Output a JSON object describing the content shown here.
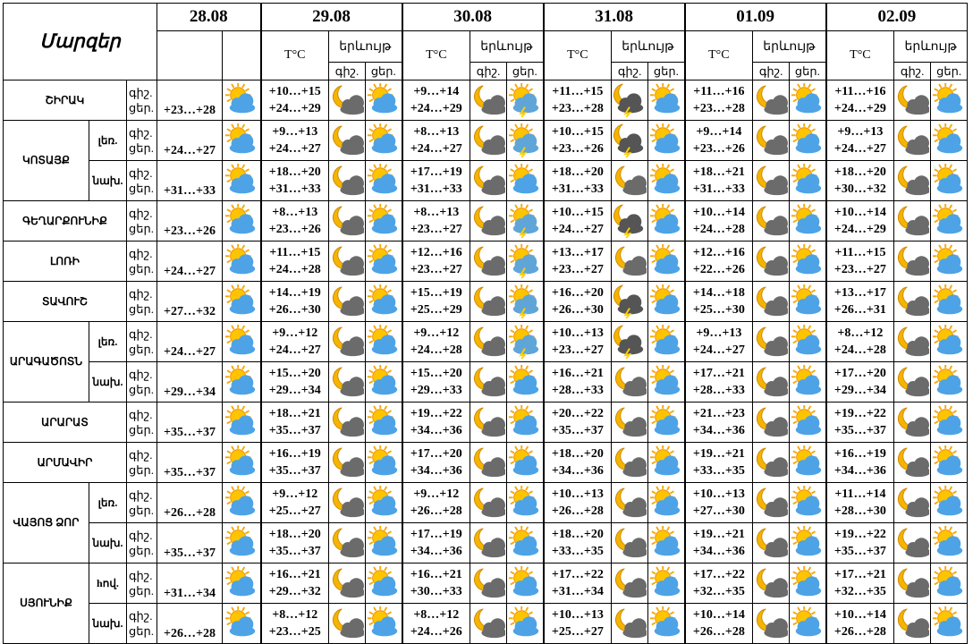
{
  "header": {
    "regions": "Մարզեր",
    "dates": [
      "28.08",
      "29.08",
      "30.08",
      "31.08",
      "01.09",
      "02.09"
    ],
    "temp": "T°C",
    "phenomenon": "երևույթ",
    "night": "գիշ.",
    "day": "ցեր."
  },
  "regions": [
    {
      "name": "ՇԻՐԱԿ",
      "zones": [
        {
          "today": "+23…+28",
          "forecast": [
            {
              "night": "+10…+15",
              "day": "+24…+29"
            },
            {
              "night": "+9…+14",
              "day": "+24…+29"
            },
            {
              "night": "+11…+15",
              "day": "+23…+28"
            },
            {
              "night": "+11…+16",
              "day": "+23…+28"
            },
            {
              "night": "+11…+16",
              "day": "+24…+29"
            }
          ]
        }
      ]
    },
    {
      "name": "ԿՈՏԱՅՔ",
      "zones": [
        {
          "name": "լեռ.",
          "today": "+24…+27",
          "forecast": [
            {
              "night": "+9…+13",
              "day": "+24…+27"
            },
            {
              "night": "+8…+13",
              "day": "+24…+27"
            },
            {
              "night": "+10…+15",
              "day": "+23…+26"
            },
            {
              "night": "+9…+14",
              "day": "+23…+26"
            },
            {
              "night": "+9…+13",
              "day": "+24…+27"
            }
          ]
        },
        {
          "name": "նախ.",
          "today": "+31…+33",
          "forecast": [
            {
              "night": "+18…+20",
              "day": "+31…+33"
            },
            {
              "night": "+17…+19",
              "day": "+31…+33"
            },
            {
              "night": "+18…+20",
              "day": "+31…+33"
            },
            {
              "night": "+18…+21",
              "day": "+31…+33"
            },
            {
              "night": "+18…+20",
              "day": "+30…+32"
            }
          ]
        }
      ]
    },
    {
      "name": "ԳԵՂԱՐՔՈՒՆԻՔ",
      "zones": [
        {
          "today": "+23…+26",
          "forecast": [
            {
              "night": "+8…+13",
              "day": "+23…+26"
            },
            {
              "night": "+8…+13",
              "day": "+23…+27"
            },
            {
              "night": "+10…+15",
              "day": "+24…+27"
            },
            {
              "night": "+10…+14",
              "day": "+24…+28"
            },
            {
              "night": "+10…+14",
              "day": "+24…+29"
            }
          ]
        }
      ]
    },
    {
      "name": "ԼՈՌԻ",
      "zones": [
        {
          "today": "+24…+27",
          "forecast": [
            {
              "night": "+11…+15",
              "day": "+24…+28"
            },
            {
              "night": "+12…+16",
              "day": "+23…+27"
            },
            {
              "night": "+13…+17",
              "day": "+23…+27"
            },
            {
              "night": "+12…+16",
              "day": "+22…+26"
            },
            {
              "night": "+11…+15",
              "day": "+23…+27"
            }
          ]
        }
      ]
    },
    {
      "name": "ՏԱՎՈՒՇ",
      "zones": [
        {
          "today": "+27…+32",
          "forecast": [
            {
              "night": "+14…+19",
              "day": "+26…+30"
            },
            {
              "night": "+15…+19",
              "day": "+25…+29"
            },
            {
              "night": "+16…+20",
              "day": "+26…+30"
            },
            {
              "night": "+14…+18",
              "day": "+25…+30"
            },
            {
              "night": "+13…+17",
              "day": "+26…+31"
            }
          ]
        }
      ]
    },
    {
      "name": "ԱՐԱԳԱԾՈՏՆ",
      "zones": [
        {
          "name": "լեռ.",
          "today": "+24…+27",
          "forecast": [
            {
              "night": "+9…+12",
              "day": "+24…+27"
            },
            {
              "night": "+9…+12",
              "day": "+24…+28"
            },
            {
              "night": "+10…+13",
              "day": "+23…+27"
            },
            {
              "night": "+9…+13",
              "day": "+24…+27"
            },
            {
              "night": "+8…+12",
              "day": "+24…+28"
            }
          ]
        },
        {
          "name": "նախ.",
          "today": "+29…+34",
          "forecast": [
            {
              "night": "+15…+20",
              "day": "+29…+34"
            },
            {
              "night": "+15…+20",
              "day": "+29…+33"
            },
            {
              "night": "+16…+21",
              "day": "+28…+33"
            },
            {
              "night": "+17…+21",
              "day": "+28…+33"
            },
            {
              "night": "+17…+20",
              "day": "+29…+34"
            }
          ]
        }
      ]
    },
    {
      "name": "ԱՐԱՐԱՏ",
      "zones": [
        {
          "today": "+35…+37",
          "forecast": [
            {
              "night": "+18…+21",
              "day": "+35…+37"
            },
            {
              "night": "+19…+22",
              "day": "+34…+36"
            },
            {
              "night": "+20…+22",
              "day": "+35…+37"
            },
            {
              "night": "+21…+23",
              "day": "+34…+36"
            },
            {
              "night": "+19…+22",
              "day": "+35…+37"
            }
          ]
        }
      ]
    },
    {
      "name": "ԱՐՄԱՎԻՐ",
      "zones": [
        {
          "today": "+35…+37",
          "forecast": [
            {
              "night": "+16…+19",
              "day": "+35…+37"
            },
            {
              "night": "+17…+20",
              "day": "+34…+36"
            },
            {
              "night": "+18…+20",
              "day": "+34…+36"
            },
            {
              "night": "+19…+21",
              "day": "+33…+35"
            },
            {
              "night": "+16…+19",
              "day": "+34…+36"
            }
          ]
        }
      ]
    },
    {
      "name": "ՎԱՅՈՑ ՁՈՐ",
      "zones": [
        {
          "name": "լեռ.",
          "today": "+26…+28",
          "forecast": [
            {
              "night": "+9…+12",
              "day": "+25…+27"
            },
            {
              "night": "+9…+12",
              "day": "+26…+28"
            },
            {
              "night": "+10…+13",
              "day": "+26…+28"
            },
            {
              "night": "+10…+13",
              "day": "+27…+30"
            },
            {
              "night": "+11…+14",
              "day": "+28…+30"
            }
          ]
        },
        {
          "name": "նախ.",
          "today": "+35…+37",
          "forecast": [
            {
              "night": "+18…+20",
              "day": "+35…+37"
            },
            {
              "night": "+17…+19",
              "day": "+34…+36"
            },
            {
              "night": "+18…+20",
              "day": "+33…+35"
            },
            {
              "night": "+19…+21",
              "day": "+34…+36"
            },
            {
              "night": "+19…+22",
              "day": "+35…+37"
            }
          ]
        }
      ]
    },
    {
      "name": "ՍՅՈՒՆԻՔ",
      "zones": [
        {
          "name": "hով.",
          "today": "+31…+34",
          "forecast": [
            {
              "night": "+16…+21",
              "day": "+29…+32"
            },
            {
              "night": "+16…+21",
              "day": "+30…+33"
            },
            {
              "night": "+17…+22",
              "day": "+31…+34"
            },
            {
              "night": "+17…+22",
              "day": "+32…+35"
            },
            {
              "night": "+17…+21",
              "day": "+32…+35"
            }
          ]
        },
        {
          "name": "նախ.",
          "today": "+26…+28",
          "forecast": [
            {
              "night": "+8…+12",
              "day": "+23…+25"
            },
            {
              "night": "+8…+12",
              "day": "+24…+26"
            },
            {
              "night": "+10…+13",
              "day": "+25…+27"
            },
            {
              "night": "+10…+14",
              "day": "+26…+28"
            },
            {
              "night": "+10…+14",
              "day": "+26…+28"
            }
          ]
        }
      ]
    }
  ]
}
